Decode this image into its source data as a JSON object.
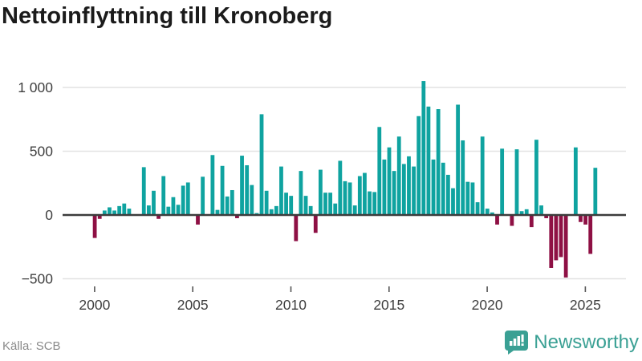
{
  "title": "Nettoinflyttning till Kronoberg",
  "source": "Källa: SCB",
  "logo": {
    "brand": "Newsworthy"
  },
  "colors": {
    "positive": "#0fa3a0",
    "negative": "#8e1044",
    "grid": "#e2e2e2",
    "zero_axis": "#3c3c3c",
    "tick_text": "#3f3f3f",
    "tick_mark": "#555555",
    "title_text": "#1b1b1b",
    "source_text": "#8a8a8a",
    "brand_teal": "#3aa094"
  },
  "chart_data": {
    "type": "bar",
    "title": "Nettoinflyttning till Kronoberg",
    "xlabel": "",
    "ylabel": "",
    "x_unit": "quarter",
    "x_start": "2000Q1",
    "x_end": "2025Q3",
    "frequency": "quarterly",
    "grid": true,
    "ylim": [
      -560,
      1120
    ],
    "y_ticks": [
      1000,
      500,
      0,
      -500
    ],
    "y_tick_labels": [
      "1 000",
      "500",
      "0",
      "−500"
    ],
    "x_tick_years": [
      2000,
      2005,
      2010,
      2015,
      2020,
      2025
    ],
    "x_tick_labels": [
      "2000",
      "2005",
      "2010",
      "2015",
      "2020",
      "2025"
    ],
    "series_name": "Nettoinflyttning",
    "values_by_year": [
      {
        "year": 2000,
        "q": [
          -180,
          -30,
          35,
          60
        ]
      },
      {
        "year": 2001,
        "q": [
          35,
          70,
          90,
          50
        ]
      },
      {
        "year": 2002,
        "q": [
          0,
          0,
          375,
          75
        ]
      },
      {
        "year": 2003,
        "q": [
          190,
          -30,
          305,
          65
        ]
      },
      {
        "year": 2004,
        "q": [
          140,
          80,
          230,
          255
        ]
      },
      {
        "year": 2005,
        "q": [
          0,
          -75,
          300,
          0
        ]
      },
      {
        "year": 2006,
        "q": [
          470,
          40,
          385,
          145
        ]
      },
      {
        "year": 2007,
        "q": [
          195,
          -25,
          465,
          390
        ]
      },
      {
        "year": 2008,
        "q": [
          235,
          15,
          790,
          190
        ]
      },
      {
        "year": 2009,
        "q": [
          45,
          70,
          380,
          175
        ]
      },
      {
        "year": 2010,
        "q": [
          150,
          -205,
          345,
          150
        ]
      },
      {
        "year": 2011,
        "q": [
          70,
          -140,
          355,
          175
        ]
      },
      {
        "year": 2012,
        "q": [
          175,
          90,
          425,
          265
        ]
      },
      {
        "year": 2013,
        "q": [
          255,
          75,
          305,
          330
        ]
      },
      {
        "year": 2014,
        "q": [
          185,
          180,
          690,
          435
        ]
      },
      {
        "year": 2015,
        "q": [
          530,
          345,
          615,
          400
        ]
      },
      {
        "year": 2016,
        "q": [
          460,
          380,
          775,
          1050
        ]
      },
      {
        "year": 2017,
        "q": [
          850,
          435,
          830,
          410
        ]
      },
      {
        "year": 2018,
        "q": [
          315,
          210,
          865,
          585
        ]
      },
      {
        "year": 2019,
        "q": [
          260,
          255,
          100,
          615
        ]
      },
      {
        "year": 2020,
        "q": [
          50,
          20,
          -75,
          520
        ]
      },
      {
        "year": 2021,
        "q": [
          0,
          -85,
          515,
          30
        ]
      },
      {
        "year": 2022,
        "q": [
          45,
          -95,
          590,
          75
        ]
      },
      {
        "year": 2023,
        "q": [
          -25,
          -415,
          -355,
          -330
        ]
      },
      {
        "year": 2024,
        "q": [
          -490,
          0,
          530,
          -55
        ]
      },
      {
        "year": 2025,
        "q": [
          -75,
          -305,
          370
        ]
      }
    ]
  }
}
